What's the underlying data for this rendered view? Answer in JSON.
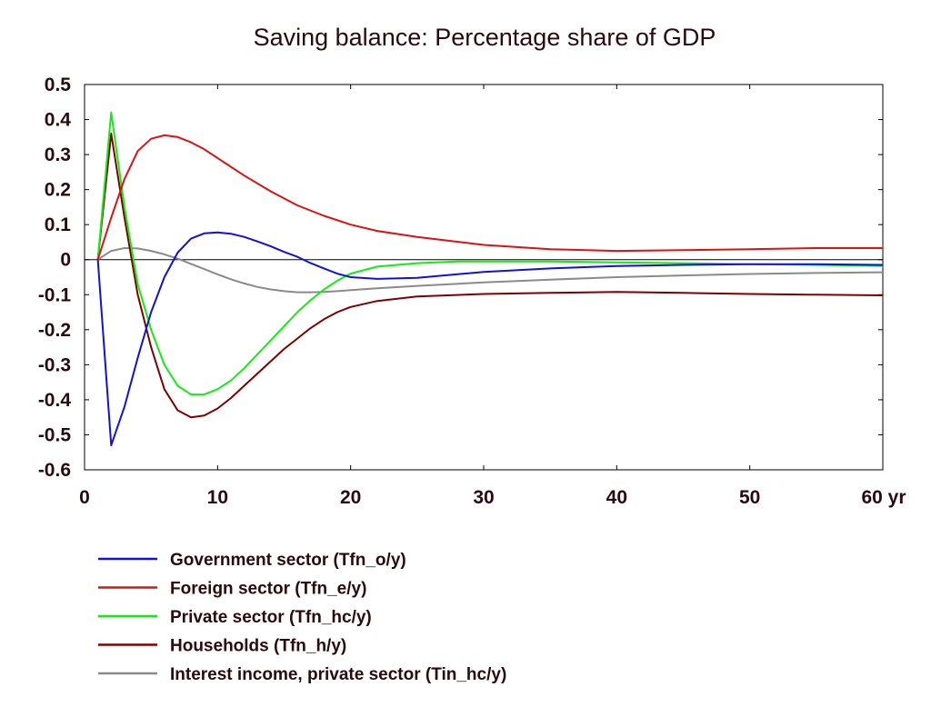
{
  "chart_data": {
    "type": "line",
    "title": "Saving balance: Percentage share of GDP",
    "xlabel": "",
    "ylabel": "",
    "xlim": [
      0,
      60
    ],
    "ylim": [
      -0.6,
      0.5
    ],
    "x_ticks": [
      0,
      10,
      20,
      30,
      40,
      50,
      60
    ],
    "x_tick_labels": [
      "0",
      "10",
      "20",
      "30",
      "40",
      "50",
      "60 yr"
    ],
    "y_ticks": [
      0.5,
      0.4,
      0.3,
      0.2,
      0.1,
      0,
      -0.1,
      -0.2,
      -0.3,
      -0.4,
      -0.5,
      -0.6
    ],
    "y_tick_labels": [
      "0.5",
      "0.4",
      "0.3",
      "0.2",
      "0.1",
      "0",
      "-0.1",
      "-0.2",
      "-0.3",
      "-0.4",
      "-0.5",
      "-0.6"
    ],
    "grid": false,
    "zero_line": true,
    "legend_position": "bottom",
    "series": [
      {
        "name": "Government sector (Tfn_o/y)",
        "color": "#1010e0",
        "x": [
          1,
          2,
          3,
          4,
          5,
          6,
          7,
          8,
          9,
          10,
          11,
          12,
          13,
          14,
          15,
          16,
          17,
          18,
          19,
          20,
          22,
          25,
          30,
          35,
          40,
          45,
          50,
          55,
          60
        ],
        "y": [
          0,
          -0.53,
          -0.42,
          -0.28,
          -0.15,
          -0.05,
          0.02,
          0.06,
          0.075,
          0.078,
          0.074,
          0.065,
          0.052,
          0.038,
          0.022,
          0.008,
          -0.01,
          -0.025,
          -0.04,
          -0.05,
          -0.055,
          -0.052,
          -0.035,
          -0.025,
          -0.018,
          -0.015,
          -0.013,
          -0.013,
          -0.015
        ]
      },
      {
        "name": "Foreign sector (Tfn_e/y)",
        "color": "#e01010",
        "x": [
          1,
          2,
          3,
          4,
          5,
          6,
          7,
          8,
          9,
          10,
          12,
          14,
          16,
          18,
          20,
          22,
          25,
          30,
          35,
          40,
          45,
          50,
          55,
          60
        ],
        "y": [
          0,
          0.12,
          0.23,
          0.31,
          0.345,
          0.355,
          0.35,
          0.335,
          0.315,
          0.29,
          0.24,
          0.195,
          0.155,
          0.125,
          0.1,
          0.082,
          0.065,
          0.042,
          0.03,
          0.025,
          0.027,
          0.03,
          0.033,
          0.033
        ]
      },
      {
        "name": "Private sector (Tfn_hc/y)",
        "color": "#10ee10",
        "x": [
          1,
          2,
          3,
          4,
          5,
          6,
          7,
          8,
          9,
          10,
          11,
          12,
          13,
          14,
          15,
          16,
          17,
          18,
          19,
          20,
          22,
          25,
          28,
          30,
          35,
          40,
          45,
          50,
          55,
          60
        ],
        "y": [
          0,
          0.42,
          0.15,
          -0.07,
          -0.2,
          -0.3,
          -0.36,
          -0.385,
          -0.385,
          -0.37,
          -0.345,
          -0.31,
          -0.27,
          -0.23,
          -0.19,
          -0.15,
          -0.115,
          -0.085,
          -0.06,
          -0.04,
          -0.02,
          -0.01,
          -0.005,
          -0.005,
          -0.005,
          -0.008,
          -0.01,
          -0.013,
          -0.015,
          -0.018
        ]
      },
      {
        "name": "Households (Tfn_h/y)",
        "color": "#800000",
        "x": [
          1,
          2,
          3,
          4,
          5,
          6,
          7,
          8,
          9,
          10,
          11,
          12,
          13,
          14,
          15,
          16,
          17,
          18,
          19,
          20,
          22,
          25,
          30,
          35,
          40,
          45,
          50,
          55,
          60
        ],
        "y": [
          0,
          0.36,
          0.12,
          -0.1,
          -0.25,
          -0.37,
          -0.43,
          -0.45,
          -0.445,
          -0.425,
          -0.395,
          -0.36,
          -0.325,
          -0.29,
          -0.255,
          -0.225,
          -0.195,
          -0.17,
          -0.15,
          -0.135,
          -0.118,
          -0.105,
          -0.098,
          -0.095,
          -0.092,
          -0.095,
          -0.098,
          -0.1,
          -0.102
        ]
      },
      {
        "name": "Interest income, private sector (Tin_hc/y)",
        "color": "#8a8a8a",
        "x": [
          1,
          2,
          3,
          4,
          5,
          6,
          7,
          8,
          9,
          10,
          11,
          12,
          13,
          14,
          15,
          16,
          17,
          18,
          19,
          20,
          22,
          25,
          30,
          35,
          40,
          45,
          50,
          55,
          60
        ],
        "y": [
          0,
          0.025,
          0.033,
          0.032,
          0.025,
          0.015,
          0.003,
          -0.012,
          -0.027,
          -0.042,
          -0.056,
          -0.068,
          -0.078,
          -0.085,
          -0.09,
          -0.093,
          -0.093,
          -0.092,
          -0.09,
          -0.087,
          -0.082,
          -0.075,
          -0.065,
          -0.057,
          -0.05,
          -0.045,
          -0.041,
          -0.038,
          -0.036
        ]
      }
    ]
  }
}
